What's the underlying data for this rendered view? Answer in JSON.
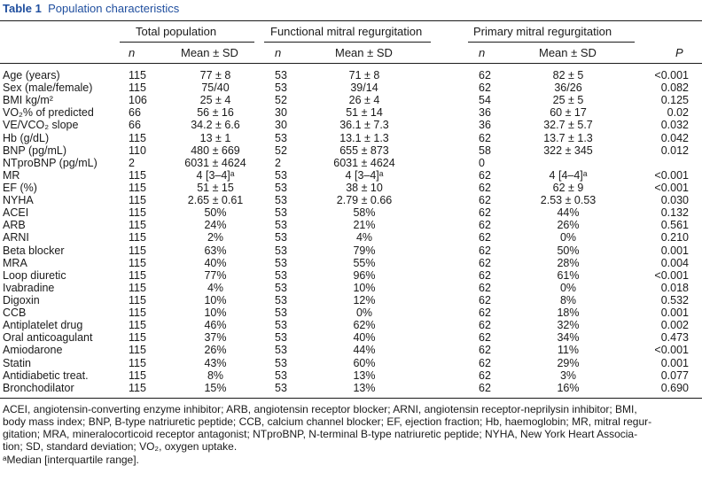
{
  "caption": {
    "label": "Table 1",
    "title": "Population characteristics"
  },
  "groups": {
    "total": "Total population",
    "functional": "Functional mitral regurgitation",
    "primary": "Primary mitral regurgitation"
  },
  "subheaders": {
    "n": "n",
    "mean": "Mean ± SD",
    "p": "P"
  },
  "rows": [
    [
      "Age (years)",
      "115",
      "77 ± 8",
      "53",
      "71 ± 8",
      "62",
      "82 ± 5",
      "<0.001"
    ],
    [
      "Sex (male/female)",
      "115",
      "75/40",
      "53",
      "39/14",
      "62",
      "36/26",
      "0.082"
    ],
    [
      "BMI kg/m²",
      "106",
      "25 ± 4",
      "52",
      "26 ± 4",
      "54",
      "25 ± 5",
      "0.125"
    ],
    [
      "VO₂% of predicted",
      "66",
      "56 ± 16",
      "30",
      "51 ± 14",
      "36",
      "60 ± 17",
      "0.02"
    ],
    [
      "VE/VCO₂ slope",
      "66",
      "34.2 ± 6.6",
      "30",
      "36.1 ± 7.3",
      "36",
      "32.7 ± 5.7",
      "0.032"
    ],
    [
      "Hb (g/dL)",
      "115",
      "13 ± 1",
      "53",
      "13.1 ± 1.3",
      "62",
      "13.7 ± 1.3",
      "0.042"
    ],
    [
      "BNP (pg/mL)",
      "110",
      "480 ± 669",
      "52",
      "655 ± 873",
      "58",
      "322 ± 345",
      "0.012"
    ],
    [
      "NTproBNP (pg/mL)",
      "2",
      "6031 ± 4624",
      "2",
      "6031 ± 4624",
      "0",
      "",
      ""
    ],
    [
      "MR",
      "115",
      "4 [3–4]ᵃ",
      "53",
      "4 [3–4]ᵃ",
      "62",
      "4 [4–4]ᵃ",
      "<0.001"
    ],
    [
      "EF (%)",
      "115",
      "51 ± 15",
      "53",
      "38 ± 10",
      "62",
      "62 ± 9",
      "<0.001"
    ],
    [
      "NYHA",
      "115",
      "2.65 ± 0.61",
      "53",
      "2.79 ± 0.66",
      "62",
      "2.53 ± 0.53",
      "0.030"
    ],
    [
      "ACEI",
      "115",
      "50%",
      "53",
      "58%",
      "62",
      "44%",
      "0.132"
    ],
    [
      "ARB",
      "115",
      "24%",
      "53",
      "21%",
      "62",
      "26%",
      "0.561"
    ],
    [
      "ARNI",
      "115",
      "2%",
      "53",
      "4%",
      "62",
      "0%",
      "0.210"
    ],
    [
      "Beta blocker",
      "115",
      "63%",
      "53",
      "79%",
      "62",
      "50%",
      "0.001"
    ],
    [
      "MRA",
      "115",
      "40%",
      "53",
      "55%",
      "62",
      "28%",
      "0.004"
    ],
    [
      "Loop diuretic",
      "115",
      "77%",
      "53",
      "96%",
      "62",
      "61%",
      "<0.001"
    ],
    [
      "Ivabradine",
      "115",
      "4%",
      "53",
      "10%",
      "62",
      "0%",
      "0.018"
    ],
    [
      "Digoxin",
      "115",
      "10%",
      "53",
      "12%",
      "62",
      "8%",
      "0.532"
    ],
    [
      "CCB",
      "115",
      "10%",
      "53",
      "0%",
      "62",
      "18%",
      "0.001"
    ],
    [
      "Antiplatelet drug",
      "115",
      "46%",
      "53",
      "62%",
      "62",
      "32%",
      "0.002"
    ],
    [
      "Oral anticoagulant",
      "115",
      "37%",
      "53",
      "40%",
      "62",
      "34%",
      "0.473"
    ],
    [
      "Amiodarone",
      "115",
      "26%",
      "53",
      "44%",
      "62",
      "11%",
      "<0.001"
    ],
    [
      "Statin",
      "115",
      "43%",
      "53",
      "60%",
      "62",
      "29%",
      "0.001"
    ],
    [
      "Antidiabetic treat.",
      "115",
      "8%",
      "53",
      "13%",
      "62",
      "3%",
      "0.077"
    ],
    [
      "Bronchodilator",
      "115",
      "15%",
      "53",
      "13%",
      "62",
      "16%",
      "0.690"
    ]
  ],
  "footnotes": {
    "line1": "ACEI, angiotensin-converting enzyme inhibitor; ARB, angiotensin receptor blocker; ARNI, angiotensin receptor-neprilysin inhibitor; BMI,",
    "line2": "body mass index; BNP, B-type natriuretic peptide; CCB, calcium channel blocker; EF, ejection fraction; Hb, haemoglobin; MR, mitral regur-",
    "line3": "gitation; MRA, mineralocorticoid receptor antagonist; NTproBNP, N-terminal B-type natriuretic peptide; NYHA, New York Heart Associa-",
    "line4": "tion; SD, standard deviation; VO₂, oxygen uptake.",
    "median_mark": "ᵃ",
    "median_text": "Median [interquartile range]."
  }
}
